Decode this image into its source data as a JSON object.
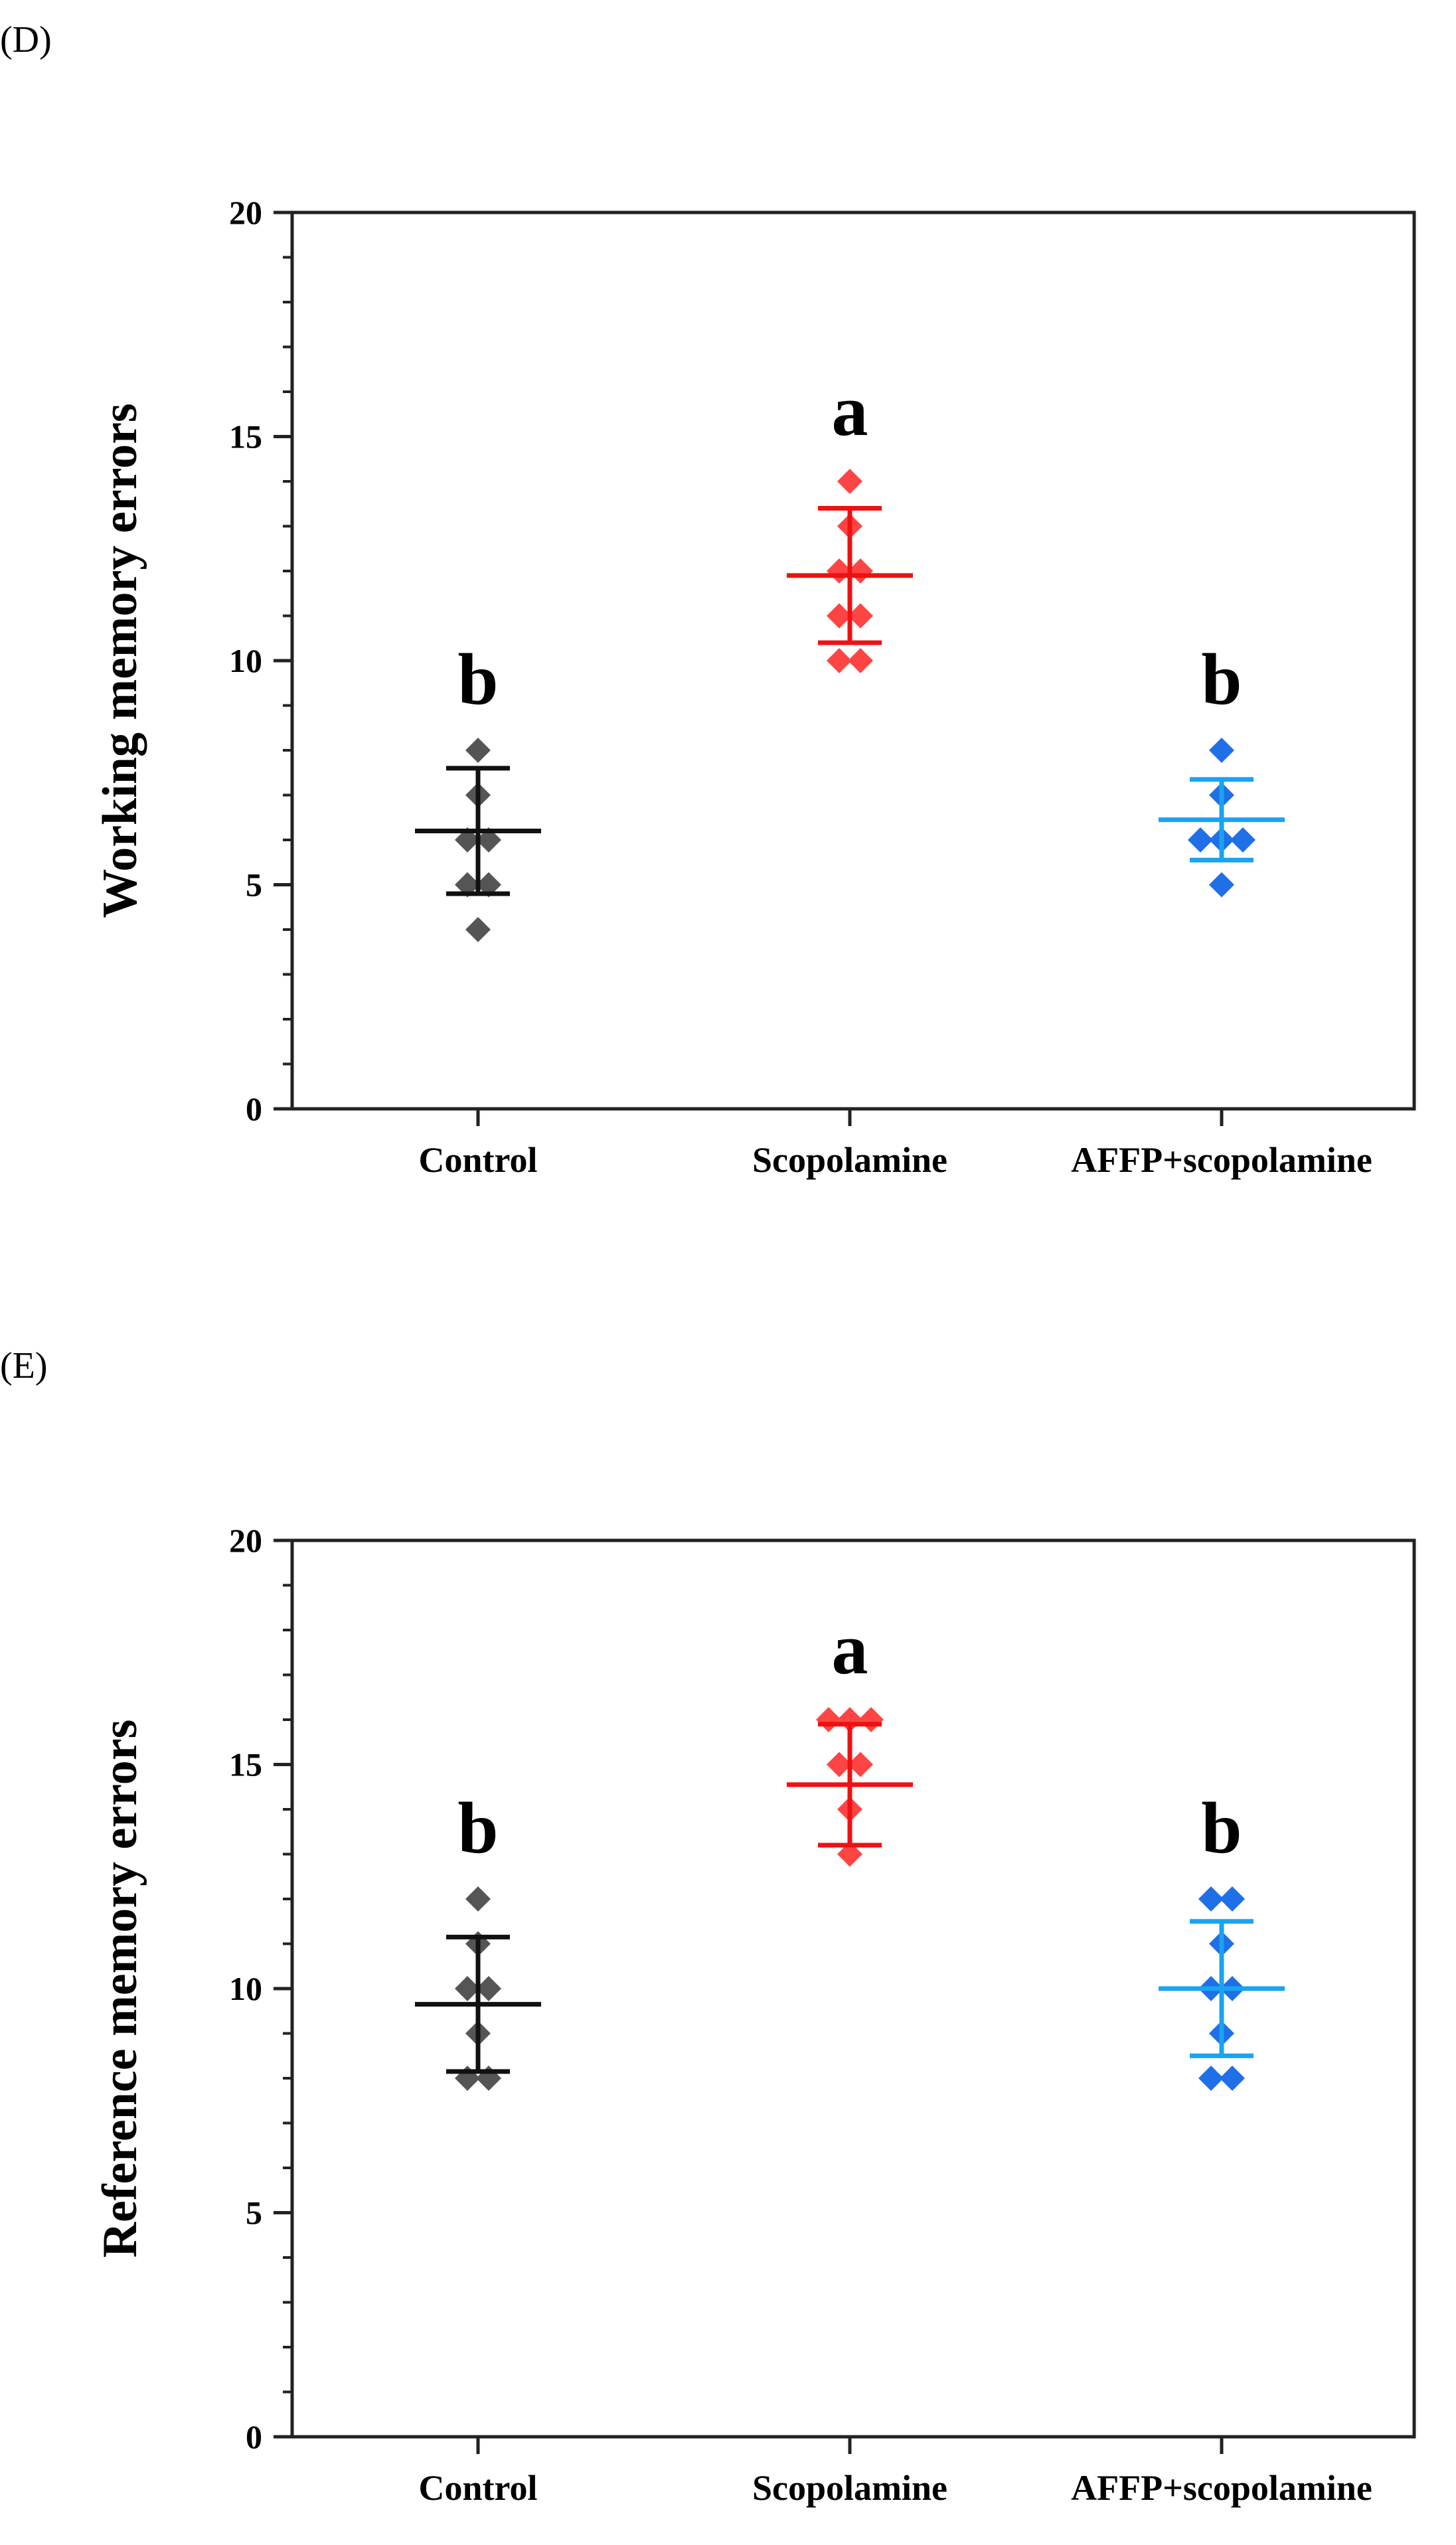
{
  "chart_data": [
    {
      "panel_label": "(D)",
      "type": "scatter",
      "categories": [
        "Control",
        "Scopolamine",
        "AFFP+scopolamine"
      ],
      "ylabel": "Working memory errors",
      "ylim": [
        0,
        20
      ],
      "yticks": [
        0,
        5,
        10,
        15,
        20
      ],
      "ytick_labels": [
        "0",
        "5",
        "10",
        "15",
        "20"
      ],
      "series": [
        {
          "name": "Control",
          "color": "#555555",
          "bar_color": "#111111",
          "points": [
            8,
            7,
            6,
            6,
            5,
            5,
            4
          ],
          "mean": 6.2,
          "sd": 1.4,
          "letter": "b"
        },
        {
          "name": "Scopolamine",
          "color": "#ff4444",
          "bar_color": "#ee1111",
          "points": [
            14,
            13,
            12,
            12,
            11,
            11,
            10,
            10
          ],
          "mean": 11.9,
          "sd": 1.5,
          "letter": "a"
        },
        {
          "name": "AFFP+scopolamine",
          "color": "#1f6fe6",
          "bar_color": "#1aa3f0",
          "points": [
            8,
            7,
            6,
            6,
            6,
            5
          ],
          "mean": 6.45,
          "sd": 0.9,
          "letter": "b"
        }
      ]
    },
    {
      "panel_label": "(E)",
      "type": "scatter",
      "categories": [
        "Control",
        "Scopolamine",
        "AFFP+scopolamine"
      ],
      "ylabel": "Reference memory errors",
      "ylim": [
        0,
        20
      ],
      "yticks": [
        0,
        5,
        10,
        15,
        20
      ],
      "ytick_labels": [
        "0",
        "5",
        "10",
        "15",
        "20"
      ],
      "series": [
        {
          "name": "Control",
          "color": "#555555",
          "bar_color": "#111111",
          "points": [
            12,
            11,
            10,
            10,
            9,
            8,
            8
          ],
          "mean": 9.65,
          "sd": 1.5,
          "letter": "b"
        },
        {
          "name": "Scopolamine",
          "color": "#ff4444",
          "bar_color": "#ee1111",
          "points": [
            16,
            16,
            16,
            15,
            15,
            14,
            13
          ],
          "mean": 14.55,
          "sd": 1.35,
          "letter": "a"
        },
        {
          "name": "AFFP+scopolamine",
          "color": "#1f6fe6",
          "bar_color": "#1aa3f0",
          "points": [
            12,
            12,
            11,
            10,
            10,
            9,
            8,
            8
          ],
          "mean": 10.0,
          "sd": 1.5,
          "letter": "b"
        }
      ]
    }
  ]
}
